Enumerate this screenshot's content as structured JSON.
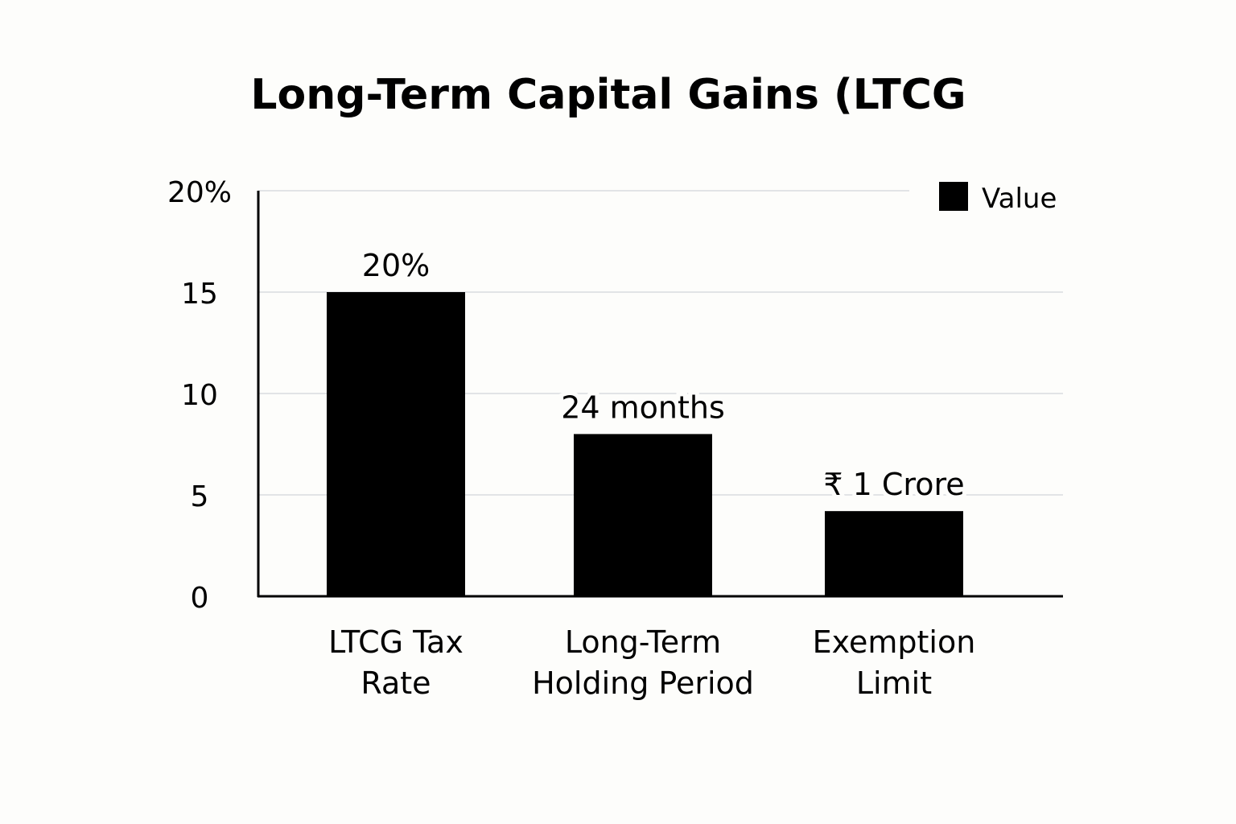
{
  "chart_data": {
    "type": "bar",
    "title": "Long-Term Capital Gains (LTCG",
    "xlabel": "",
    "ylabel": "",
    "ylim": [
      0,
      20
    ],
    "yticks": [
      {
        "value": 0,
        "label": "0"
      },
      {
        "value": 5,
        "label": "5"
      },
      {
        "value": 10,
        "label": "10"
      },
      {
        "value": 15,
        "label": "15"
      },
      {
        "value": 20,
        "label": "20%"
      }
    ],
    "categories": [
      [
        "LTCG Tax",
        "Rate"
      ],
      [
        "Long-Term",
        "Holding Period"
      ],
      [
        "Exemption",
        "Limit"
      ]
    ],
    "series": [
      {
        "name": "Value",
        "values": [
          15,
          8,
          4.2
        ],
        "data_labels": [
          "20%",
          "24 months",
          "₹ 1 Crore"
        ],
        "color": "#000000"
      }
    ],
    "grid": true,
    "legend": "top-right",
    "colors": {
      "bar": "#000000",
      "grid": "#d9dbe0",
      "axis": "#000000",
      "background": "#fdfdfb"
    }
  }
}
